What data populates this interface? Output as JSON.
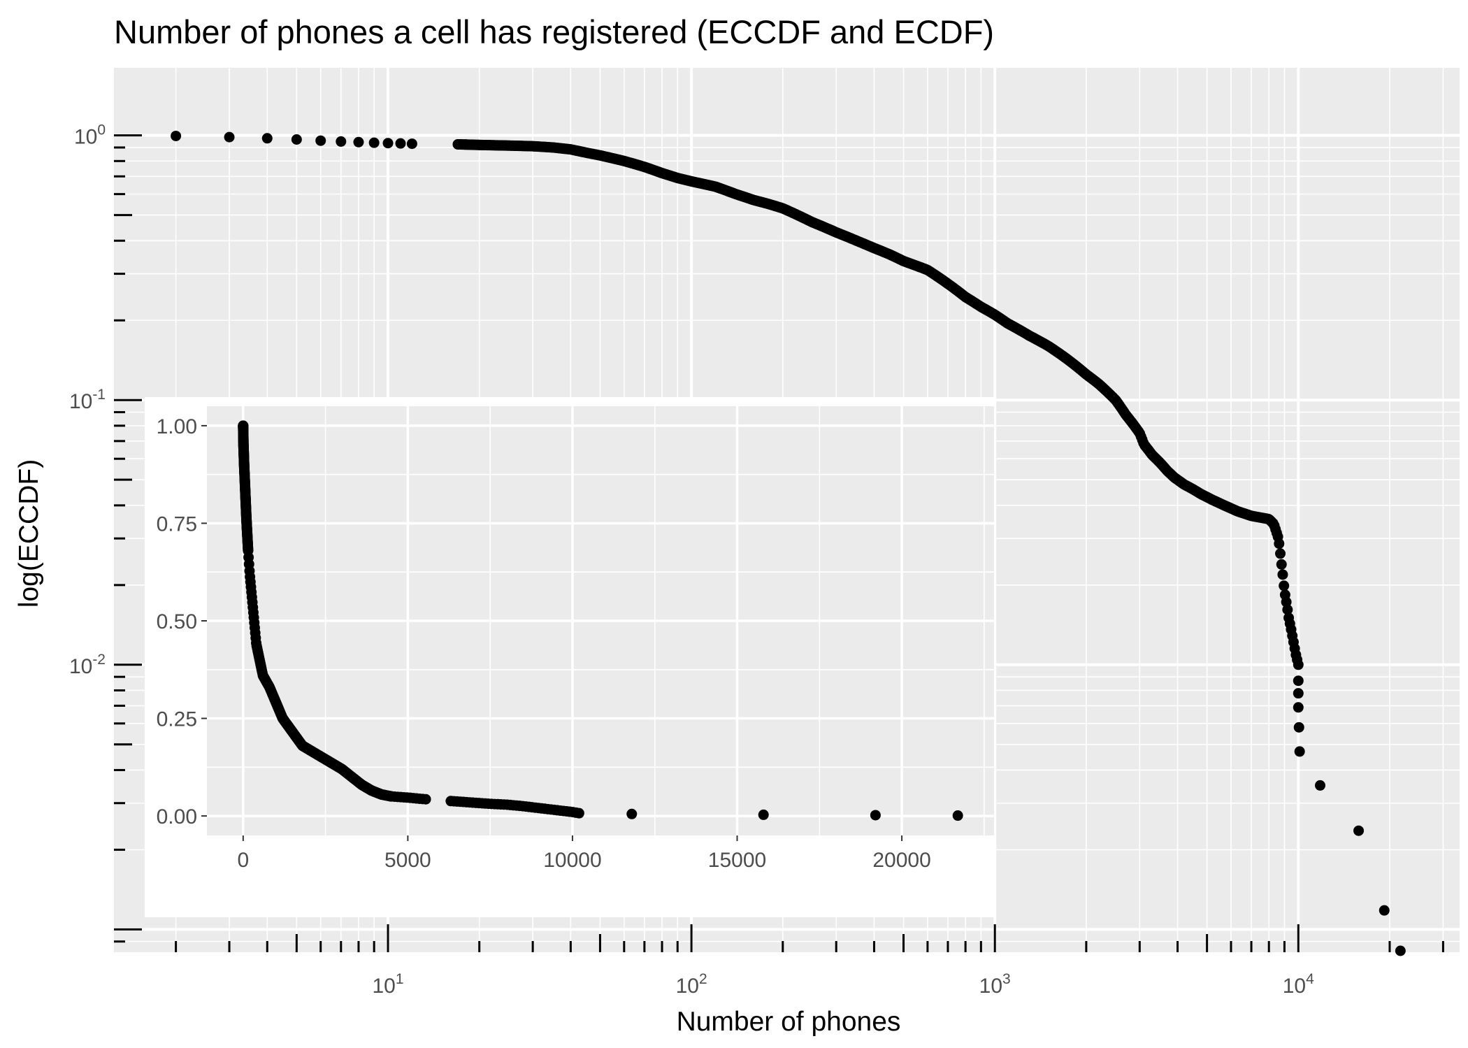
{
  "colors": {
    "panel_background": "#ebebeb",
    "grid_line": "#ffffff",
    "point": "#000000",
    "tick_label": "#4d4d4d",
    "text": "#000000"
  },
  "chart_data": [
    {
      "id": "main",
      "type": "scatter",
      "title": "Number of phones a cell has registered (ECCDF and ECDF)",
      "xlabel": "Number of phones",
      "ylabel": "log(ECCDF)",
      "x_scale": "log10",
      "y_scale": "log10",
      "grid": true,
      "xlim": [
        1.25,
        34000
      ],
      "ylim": [
        0.00082,
        1.8
      ],
      "x_ticks": [
        {
          "value": 10,
          "base": "10",
          "exp": "1"
        },
        {
          "value": 100,
          "base": "10",
          "exp": "2"
        },
        {
          "value": 1000,
          "base": "10",
          "exp": "3"
        },
        {
          "value": 10000,
          "base": "10",
          "exp": "4"
        }
      ],
      "y_ticks": [
        {
          "value": 1,
          "base": "10",
          "exp": "0"
        },
        {
          "value": 0.1,
          "base": "10",
          "exp": "-1"
        },
        {
          "value": 0.01,
          "base": "10",
          "exp": "-2"
        }
      ],
      "curve": {
        "x": [
          2,
          3,
          4,
          5,
          6,
          7,
          8,
          9,
          10,
          12,
          14,
          17,
          20,
          25,
          30,
          35,
          40,
          45,
          50,
          60,
          70,
          80,
          90,
          100,
          120,
          140,
          160,
          180,
          200,
          250,
          300,
          350,
          400,
          450,
          500,
          600,
          700,
          800,
          900,
          1000,
          1100,
          1300,
          1500,
          1700,
          2000,
          2200,
          2500,
          2700,
          3000,
          3100,
          3300,
          3500,
          3700,
          3900,
          4200,
          4500,
          4800,
          5000,
          5200,
          5700,
          6300,
          7000,
          8000,
          8300,
          8600,
          8800,
          9000,
          9300,
          9600,
          9800,
          10000
        ],
        "y": [
          0.995,
          0.985,
          0.975,
          0.965,
          0.955,
          0.948,
          0.943,
          0.938,
          0.935,
          0.93,
          0.93,
          0.925,
          0.92,
          0.915,
          0.91,
          0.9,
          0.885,
          0.86,
          0.84,
          0.8,
          0.76,
          0.72,
          0.69,
          0.67,
          0.64,
          0.6,
          0.57,
          0.55,
          0.53,
          0.47,
          0.43,
          0.4,
          0.375,
          0.355,
          0.335,
          0.31,
          0.275,
          0.245,
          0.225,
          0.21,
          0.195,
          0.175,
          0.16,
          0.145,
          0.125,
          0.115,
          0.1,
          0.088,
          0.075,
          0.068,
          0.062,
          0.058,
          0.054,
          0.051,
          0.048,
          0.046,
          0.044,
          0.043,
          0.042,
          0.04,
          0.038,
          0.0365,
          0.0355,
          0.034,
          0.03,
          0.024,
          0.019,
          0.015,
          0.0125,
          0.011,
          0.01
        ]
      },
      "points": [
        {
          "x": 10000,
          "y": 0.0087
        },
        {
          "x": 10000,
          "y": 0.0078
        },
        {
          "x": 10000,
          "y": 0.0069
        },
        {
          "x": 10050,
          "y": 0.0058
        },
        {
          "x": 10100,
          "y": 0.0047
        },
        {
          "x": 11800,
          "y": 0.0035
        },
        {
          "x": 15800,
          "y": 0.00236
        },
        {
          "x": 19200,
          "y": 0.00118
        },
        {
          "x": 21700,
          "y": 0.00083
        }
      ]
    },
    {
      "id": "inset",
      "type": "scatter",
      "xlim": [
        -1100,
        22800
      ],
      "ylim": [
        -0.05,
        1.05
      ],
      "grid": true,
      "x_ticks": [
        {
          "value": 0,
          "label": "0"
        },
        {
          "value": 5000,
          "label": "5000"
        },
        {
          "value": 10000,
          "label": "10000"
        },
        {
          "value": 15000,
          "label": "15000"
        },
        {
          "value": 20000,
          "label": "20000"
        }
      ],
      "y_ticks": [
        {
          "value": 0,
          "label": "0.00"
        },
        {
          "value": 0.25,
          "label": "0.25"
        },
        {
          "value": 0.5,
          "label": "0.50"
        },
        {
          "value": 0.75,
          "label": "0.75"
        },
        {
          "value": 1,
          "label": "1.00"
        }
      ],
      "curve": {
        "x": [
          0,
          10,
          30,
          60,
          100,
          150,
          200,
          300,
          400,
          500,
          600,
          800,
          1000,
          1200,
          1500,
          1800,
          2200,
          2500,
          3000,
          3300,
          3600,
          3900,
          4200,
          4500,
          5000,
          5500,
          6000,
          6500,
          7000,
          7500,
          8000,
          8500,
          9000,
          9500,
          10000,
          10200
        ],
        "y": [
          1.0,
          0.95,
          0.9,
          0.84,
          0.76,
          0.68,
          0.62,
          0.53,
          0.44,
          0.4,
          0.36,
          0.33,
          0.29,
          0.25,
          0.215,
          0.18,
          0.16,
          0.145,
          0.12,
          0.1,
          0.08,
          0.065,
          0.055,
          0.05,
          0.047,
          0.043,
          0.04,
          0.037,
          0.034,
          0.031,
          0.029,
          0.025,
          0.02,
          0.015,
          0.01,
          0.007
        ]
      },
      "points": [
        {
          "x": 11800,
          "y": 0.005
        },
        {
          "x": 15800,
          "y": 0.003
        },
        {
          "x": 19200,
          "y": 0.002
        },
        {
          "x": 21700,
          "y": 0.001
        }
      ]
    }
  ]
}
